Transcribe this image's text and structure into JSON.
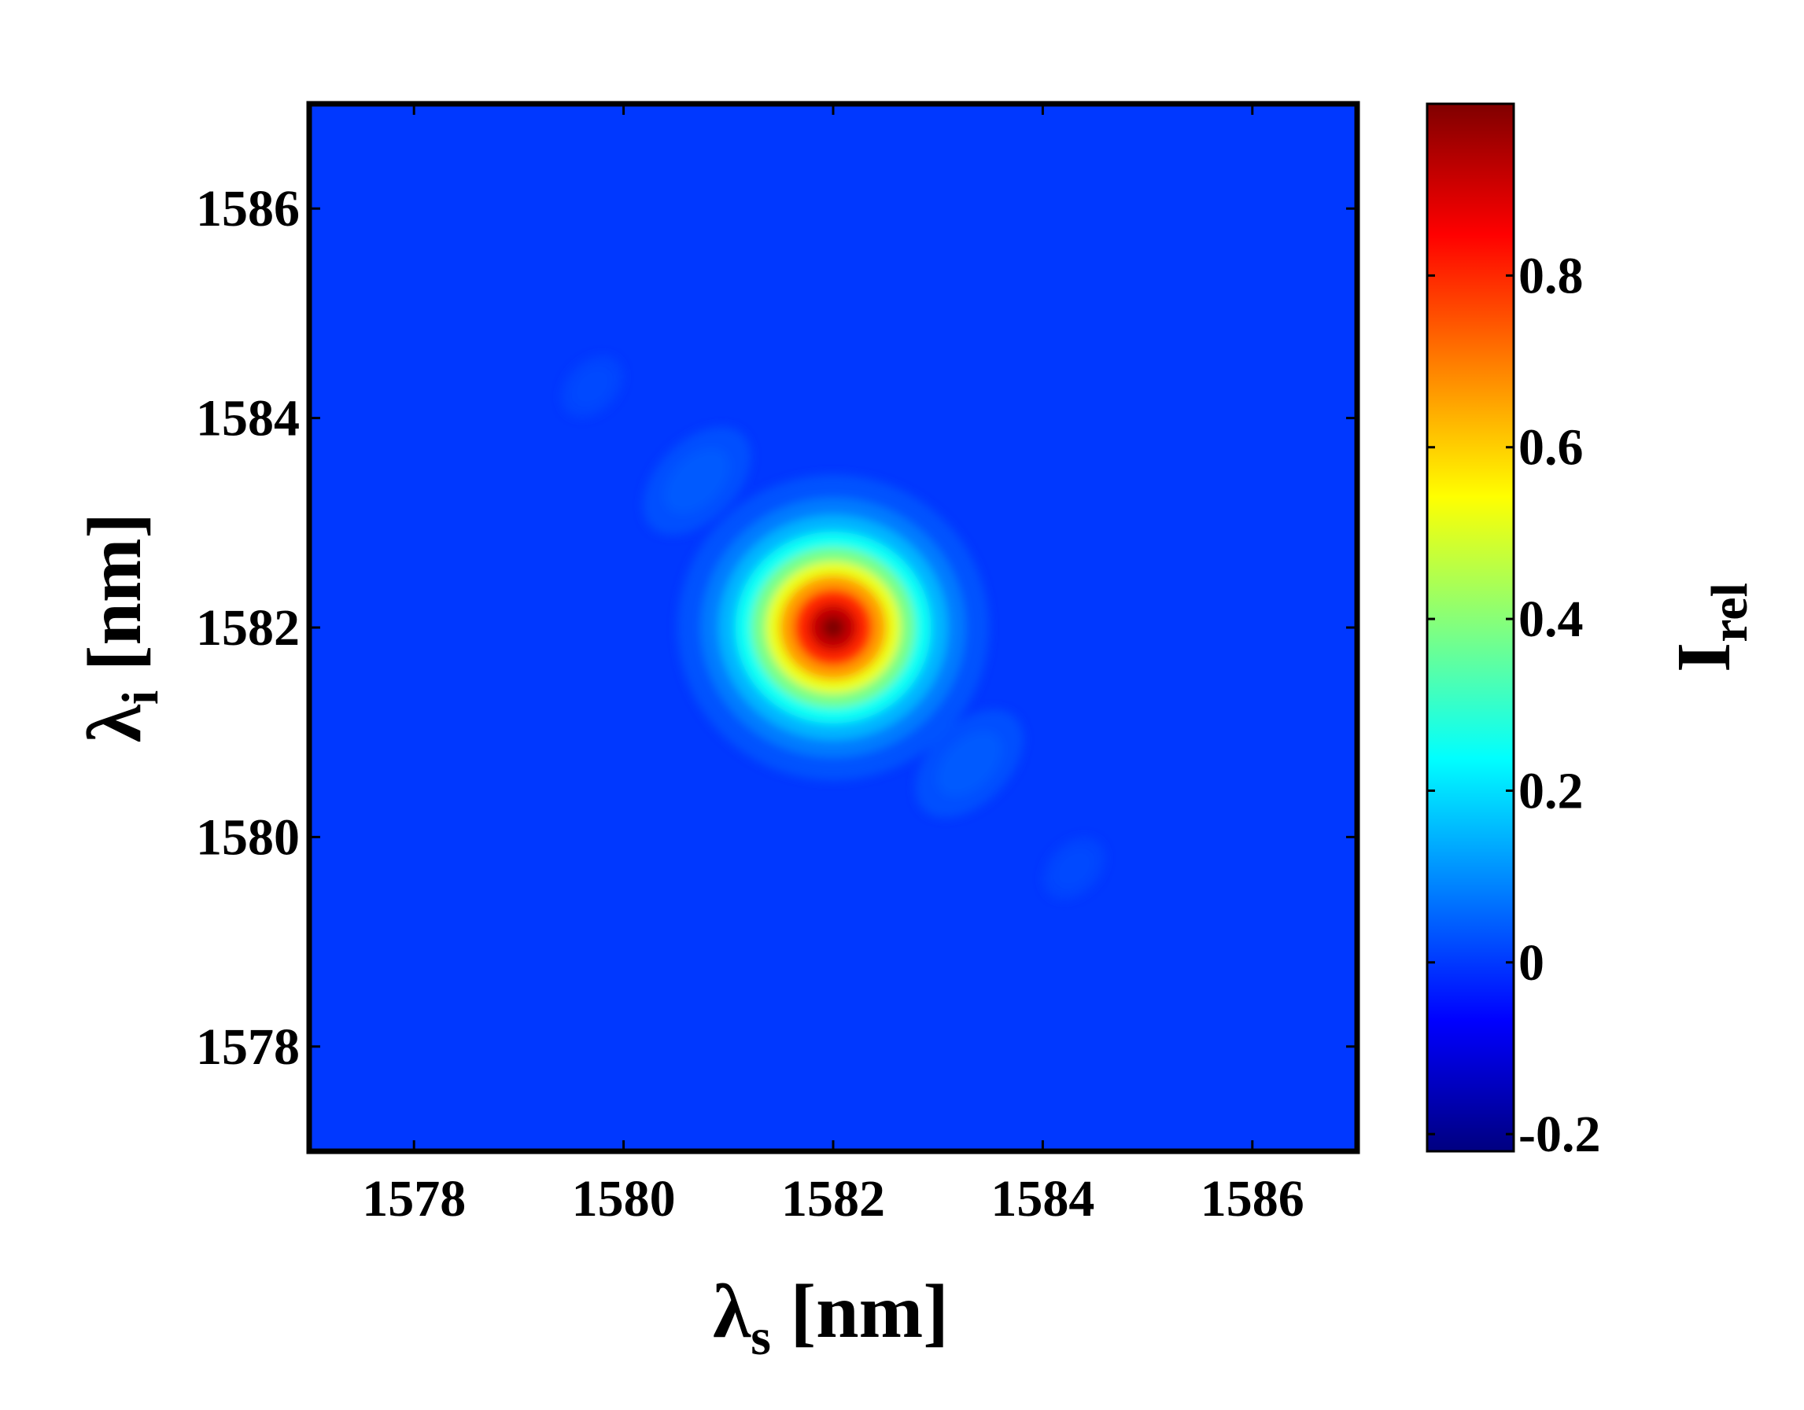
{
  "chart_data": {
    "type": "heatmap",
    "title": "",
    "xlabel": {
      "base": "λ",
      "sub": "s",
      "unit": " [nm]"
    },
    "ylabel": {
      "base": "λ",
      "sub": "i",
      "unit": " [nm]"
    },
    "xlim": [
      1577,
      1587
    ],
    "ylim": [
      1577,
      1587
    ],
    "xticks": [
      1578,
      1580,
      1582,
      1584,
      1586
    ],
    "yticks": [
      1578,
      1580,
      1582,
      1584,
      1586
    ],
    "grid": false,
    "colormap": "jet",
    "colorbar": {
      "label": {
        "base": "I",
        "sub": "rel"
      },
      "range": [
        -0.22,
        1.0
      ],
      "ticks": [
        -0.2,
        0,
        0.2,
        0.4,
        0.6,
        0.8
      ],
      "tick_labels": [
        "-0.2",
        "0",
        "0.2",
        "0.4",
        "0.6",
        "0.8"
      ]
    },
    "background_value": 0.0,
    "features": [
      {
        "x": 1582.0,
        "y": 1582.0,
        "value": 1.0,
        "kind": "main peak"
      },
      {
        "x": 1580.7,
        "y": 1583.4,
        "value": 0.04,
        "kind": "side lobe"
      },
      {
        "x": 1583.3,
        "y": 1580.7,
        "value": 0.04,
        "kind": "side lobe"
      },
      {
        "x": 1579.7,
        "y": 1584.3,
        "value": 0.02,
        "kind": "side lobe"
      },
      {
        "x": 1584.3,
        "y": 1579.7,
        "value": 0.02,
        "kind": "side lobe"
      }
    ]
  }
}
